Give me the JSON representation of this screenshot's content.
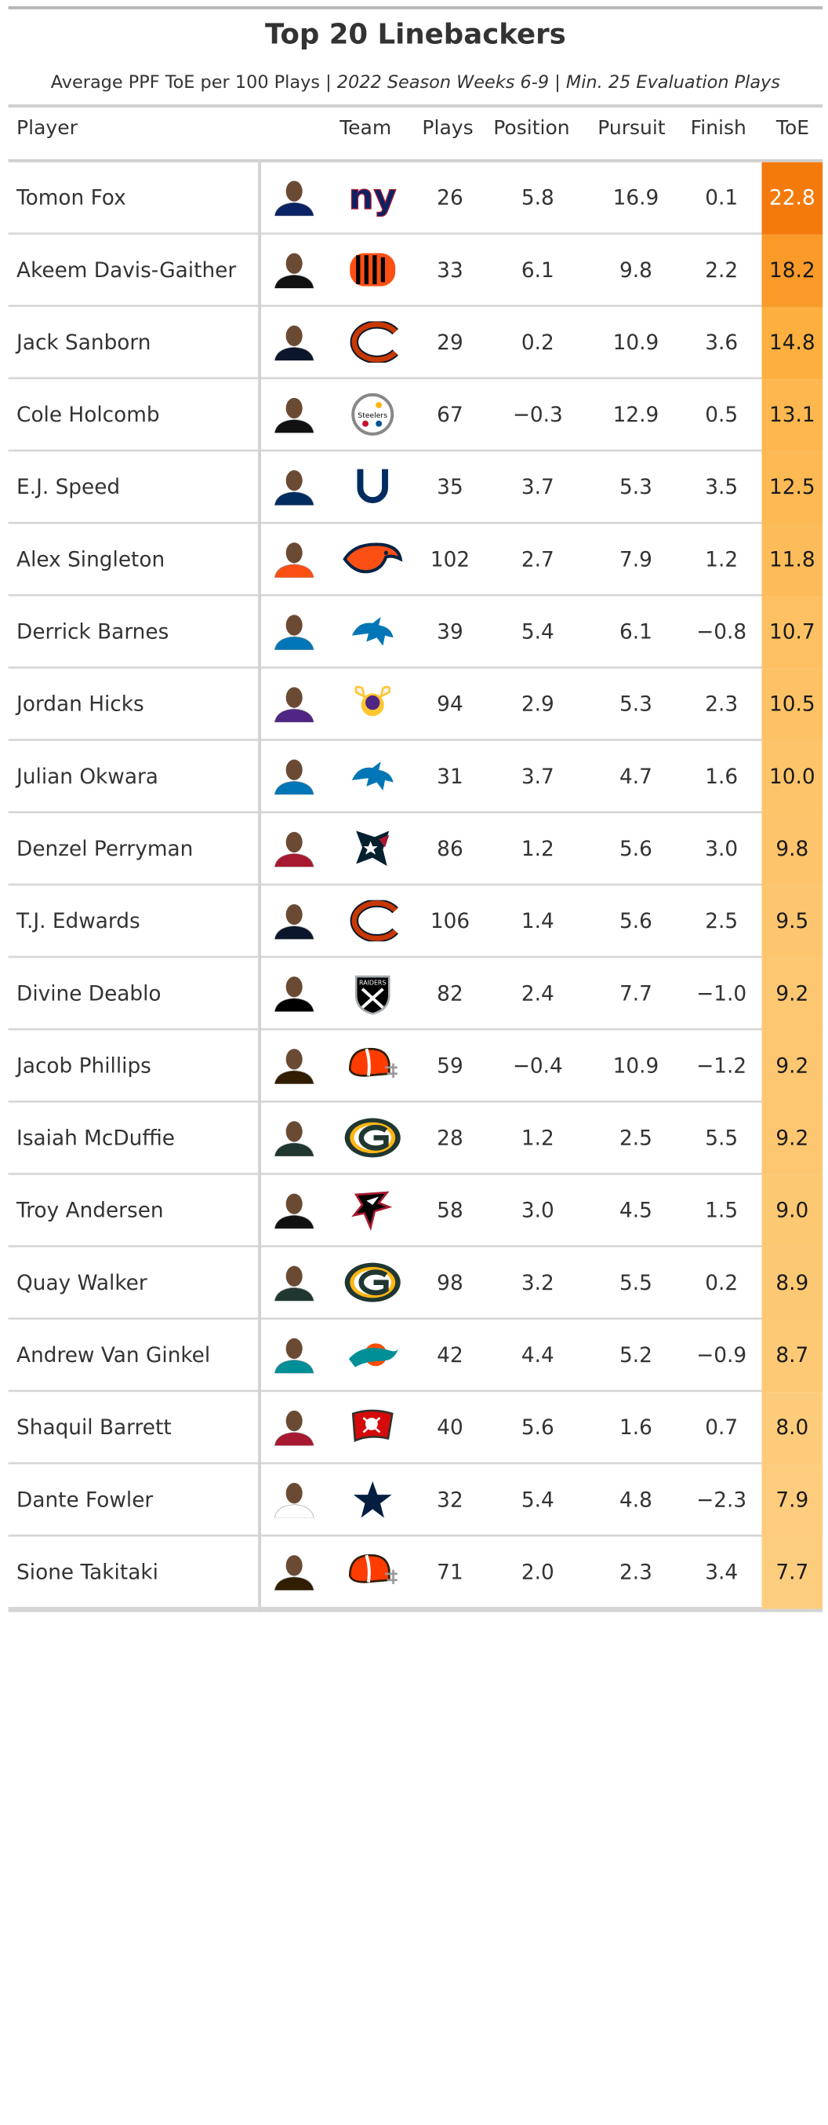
{
  "chart_data": {
    "type": "table",
    "title": "Top 20 Linebackers",
    "subtitle_parts": [
      "Average PPF ToE per 100 Plays | ",
      "2022 Season Weeks 6-9",
      " | ",
      "Min. 25 Evaluation Plays"
    ],
    "columns": [
      "Player",
      "Team",
      "Plays",
      "Position",
      "Pursuit",
      "Finish",
      "ToE"
    ],
    "rows": [
      {
        "player": "Tomon Fox",
        "team_logo": "giants-ny-logo",
        "plays": "26",
        "position": "5.8",
        "pursuit": "16.9",
        "finish": "0.1",
        "toe": "22.8",
        "toe_value": 22.8
      },
      {
        "player": "Akeem Davis-Gaither",
        "team_logo": "bengals-logo",
        "plays": "33",
        "position": "6.1",
        "pursuit": "9.8",
        "finish": "2.2",
        "toe": "18.2",
        "toe_value": 18.2
      },
      {
        "player": "Jack Sanborn",
        "team_logo": "bears-c-logo",
        "plays": "29",
        "position": "0.2",
        "pursuit": "10.9",
        "finish": "3.6",
        "toe": "14.8",
        "toe_value": 14.8
      },
      {
        "player": "Cole Holcomb",
        "team_logo": "steelers-logo",
        "plays": "67",
        "position": "−0.3",
        "pursuit": "12.9",
        "finish": "0.5",
        "toe": "13.1",
        "toe_value": 13.1
      },
      {
        "player": "E.J. Speed",
        "team_logo": "colts-horseshoe-logo",
        "plays": "35",
        "position": "3.7",
        "pursuit": "5.3",
        "finish": "3.5",
        "toe": "12.5",
        "toe_value": 12.5
      },
      {
        "player": "Alex Singleton",
        "team_logo": "broncos-logo",
        "plays": "102",
        "position": "2.7",
        "pursuit": "7.9",
        "finish": "1.2",
        "toe": "11.8",
        "toe_value": 11.8
      },
      {
        "player": "Derrick Barnes",
        "team_logo": "lions-logo",
        "plays": "39",
        "position": "5.4",
        "pursuit": "6.1",
        "finish": "−0.8",
        "toe": "10.7",
        "toe_value": 10.7
      },
      {
        "player": "Jordan Hicks",
        "team_logo": "vikings-logo",
        "plays": "94",
        "position": "2.9",
        "pursuit": "5.3",
        "finish": "2.3",
        "toe": "10.5",
        "toe_value": 10.5
      },
      {
        "player": "Julian Okwara",
        "team_logo": "lions-logo",
        "plays": "31",
        "position": "3.7",
        "pursuit": "4.7",
        "finish": "1.6",
        "toe": "10.0",
        "toe_value": 10.0
      },
      {
        "player": "Denzel Perryman",
        "team_logo": "texans-logo",
        "plays": "86",
        "position": "1.2",
        "pursuit": "5.6",
        "finish": "3.0",
        "toe": "9.8",
        "toe_value": 9.8
      },
      {
        "player": "T.J. Edwards",
        "team_logo": "bears-c-logo",
        "plays": "106",
        "position": "1.4",
        "pursuit": "5.6",
        "finish": "2.5",
        "toe": "9.5",
        "toe_value": 9.5
      },
      {
        "player": "Divine Deablo",
        "team_logo": "raiders-logo",
        "plays": "82",
        "position": "2.4",
        "pursuit": "7.7",
        "finish": "−1.0",
        "toe": "9.2",
        "toe_value": 9.2
      },
      {
        "player": "Jacob Phillips",
        "team_logo": "browns-helmet-logo",
        "plays": "59",
        "position": "−0.4",
        "pursuit": "10.9",
        "finish": "−1.2",
        "toe": "9.2",
        "toe_value": 9.2
      },
      {
        "player": "Isaiah McDuffie",
        "team_logo": "packers-g-logo",
        "plays": "28",
        "position": "1.2",
        "pursuit": "2.5",
        "finish": "5.5",
        "toe": "9.2",
        "toe_value": 9.2
      },
      {
        "player": "Troy Andersen",
        "team_logo": "falcons-logo",
        "plays": "58",
        "position": "3.0",
        "pursuit": "4.5",
        "finish": "1.5",
        "toe": "9.0",
        "toe_value": 9.0
      },
      {
        "player": "Quay Walker",
        "team_logo": "packers-g-logo",
        "plays": "98",
        "position": "3.2",
        "pursuit": "5.5",
        "finish": "0.2",
        "toe": "8.9",
        "toe_value": 8.9
      },
      {
        "player": "Andrew Van Ginkel",
        "team_logo": "dolphins-logo",
        "plays": "42",
        "position": "4.4",
        "pursuit": "5.2",
        "finish": "−0.9",
        "toe": "8.7",
        "toe_value": 8.7
      },
      {
        "player": "Shaquil Barrett",
        "team_logo": "buccaneers-flag-logo",
        "plays": "40",
        "position": "5.6",
        "pursuit": "1.6",
        "finish": "0.7",
        "toe": "8.0",
        "toe_value": 8.0
      },
      {
        "player": "Dante Fowler",
        "team_logo": "cowboys-star-logo",
        "plays": "32",
        "position": "5.4",
        "pursuit": "4.8",
        "finish": "−2.3",
        "toe": "7.9",
        "toe_value": 7.9
      },
      {
        "player": "Sione Takitaki",
        "team_logo": "browns-helmet-logo",
        "plays": "71",
        "position": "2.0",
        "pursuit": "2.3",
        "finish": "3.4",
        "toe": "7.7",
        "toe_value": 7.7
      }
    ],
    "color_scale": {
      "low": "#fdcd7e",
      "mid": "#fdae3b",
      "high": "#f47a0c"
    }
  }
}
